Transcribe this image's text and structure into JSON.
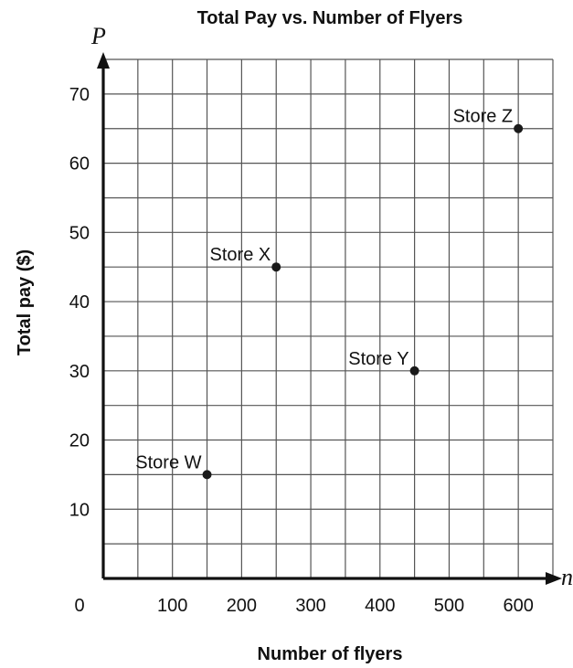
{
  "chart_data": {
    "type": "scatter",
    "title": "Total Pay vs. Number of Flyers",
    "xlabel": "Number of flyers",
    "ylabel": "Total pay ($)",
    "x_axis_symbol": "n",
    "y_axis_symbol": "P",
    "origin_label": "0",
    "xlim": [
      0,
      650
    ],
    "ylim": [
      0,
      75
    ],
    "x_ticks": [
      100,
      200,
      300,
      400,
      500,
      600
    ],
    "y_ticks": [
      10,
      20,
      30,
      40,
      50,
      60,
      70
    ],
    "x_grid_step": 50,
    "y_grid_step": 5,
    "grid": true,
    "legend": "none",
    "point_color": "#1a1a1a",
    "grid_color": "#555555",
    "points": [
      {
        "label": "Store W",
        "x": 150,
        "y": 15
      },
      {
        "label": "Store X",
        "x": 250,
        "y": 45
      },
      {
        "label": "Store Y",
        "x": 450,
        "y": 30
      },
      {
        "label": "Store Z",
        "x": 600,
        "y": 65
      }
    ]
  }
}
